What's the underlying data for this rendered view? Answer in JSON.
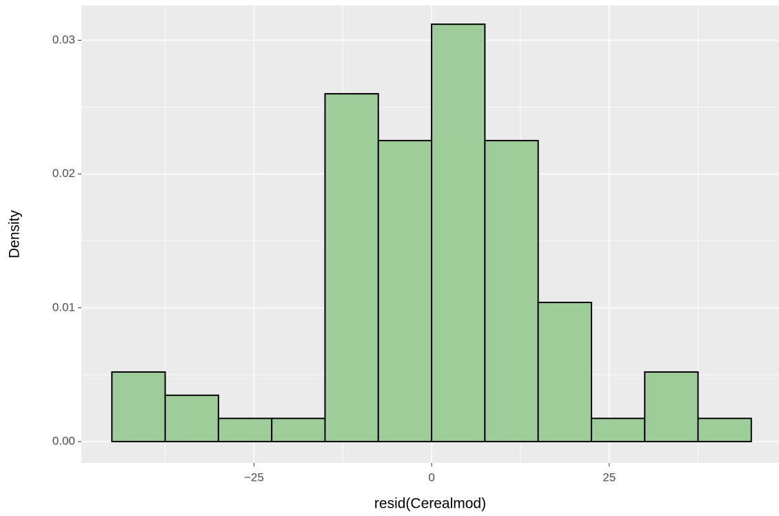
{
  "chart_data": {
    "type": "histogram",
    "x_label": "resid(Cerealmod)",
    "y_label": "Density",
    "bins": [
      -45,
      -37.5,
      -30,
      -22.5,
      -15,
      -7.5,
      0,
      7.5,
      15,
      22.5,
      30,
      37.5,
      45
    ],
    "values": [
      0.0052,
      0.00346,
      0.00173,
      0.00173,
      0.026,
      0.0225,
      0.0312,
      0.0225,
      0.0104,
      0.00173,
      0.0052,
      0.00173
    ],
    "color": "#9ecd9a",
    "edge_color": "#000000",
    "xlim": [
      -49.3,
      48.9
    ],
    "ylim": [
      -0.0016,
      0.0326
    ],
    "xticks": [
      {
        "value": -25,
        "label": "−25"
      },
      0,
      25
    ],
    "yticks": [
      {
        "value": 0,
        "label": "0.00"
      },
      0.01,
      0.02,
      0.03
    ],
    "grid": true
  }
}
